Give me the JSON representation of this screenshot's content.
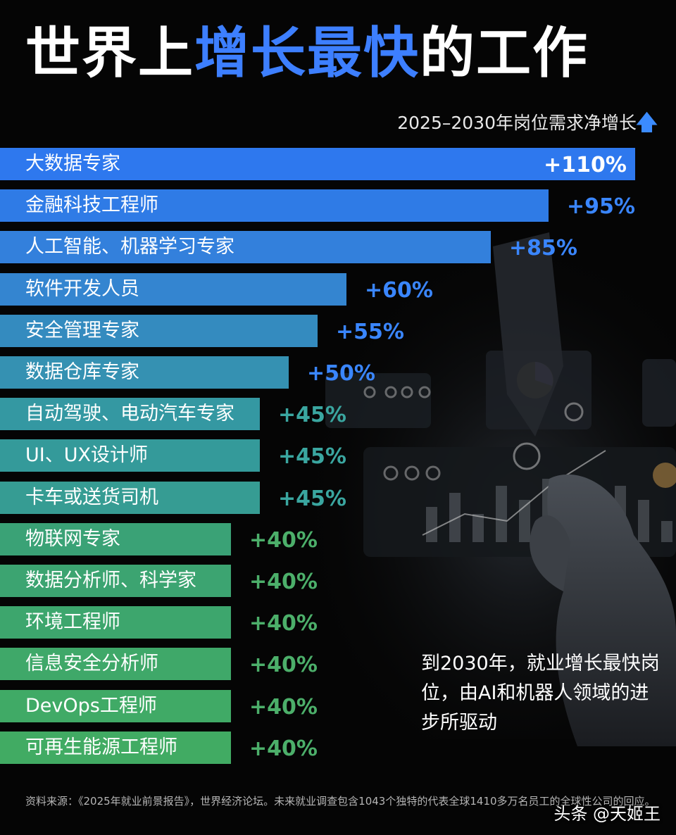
{
  "title": {
    "part1": "世界上",
    "part2": "增长最快",
    "part3": "的工作"
  },
  "subtitle": "2025–2030年岗位需求净增长",
  "caption": "到2030年，就业增长最快岗位，由AI和机器人领域的进步所驱动",
  "source": "资料来源：《2025年就业前景报告》，世界经济论坛。未来就业调查包含1043个独特的代表全球1410多万名员工的全球性公司的回应。",
  "watermark": "头条 @天姬王",
  "colors": {
    "accent": "#3d7fff",
    "blue_value": "#3a86ff",
    "teal_value": "#3aa6a0",
    "green_value": "#4caf6a"
  },
  "chart_data": {
    "type": "bar",
    "orientation": "horizontal",
    "title": "",
    "xlabel": "2025–2030年岗位需求净增长",
    "ylabel": "",
    "xlim": [
      0,
      110
    ],
    "unit": "%",
    "grid": false,
    "categories": [
      "大数据专家",
      "金融科技工程师",
      "人工智能、机器学习专家",
      "软件开发人员",
      "安全管理专家",
      "数据仓库专家",
      "自动驾驶、电动汽车专家",
      "UI、UX设计师",
      "卡车或送货司机",
      "物联网专家",
      "数据分析师、科学家",
      "环境工程师",
      "信息安全分析师",
      "DevOps工程师",
      "可再生能源工程师"
    ],
    "values": [
      110,
      95,
      85,
      60,
      55,
      50,
      45,
      45,
      45,
      40,
      40,
      40,
      40,
      40,
      40
    ],
    "value_labels": [
      "+110%",
      "+95%",
      "+85%",
      "+60%",
      "+55%",
      "+50%",
      "+45%",
      "+45%",
      "+45%",
      "+40%",
      "+40%",
      "+40%",
      "+40%",
      "+40%",
      "+40%"
    ],
    "bar_colors": [
      "#2e78ee",
      "#2f7be6",
      "#3380dc",
      "#3485d0",
      "#348bbf",
      "#3591b2",
      "#3498a2",
      "#349a9a",
      "#369c93",
      "#3aa276",
      "#3ca471",
      "#3da66d",
      "#3fa869",
      "#40aa66",
      "#41ab63"
    ],
    "value_colors": [
      "#ffffff",
      "#3a86ff",
      "#3a86ff",
      "#3a86ff",
      "#3a86ff",
      "#3a86ff",
      "#3aa6a0",
      "#3aa6a0",
      "#3aa6a0",
      "#4caf6a",
      "#4caf6a",
      "#4caf6a",
      "#4caf6a",
      "#4caf6a",
      "#4caf6a"
    ]
  }
}
